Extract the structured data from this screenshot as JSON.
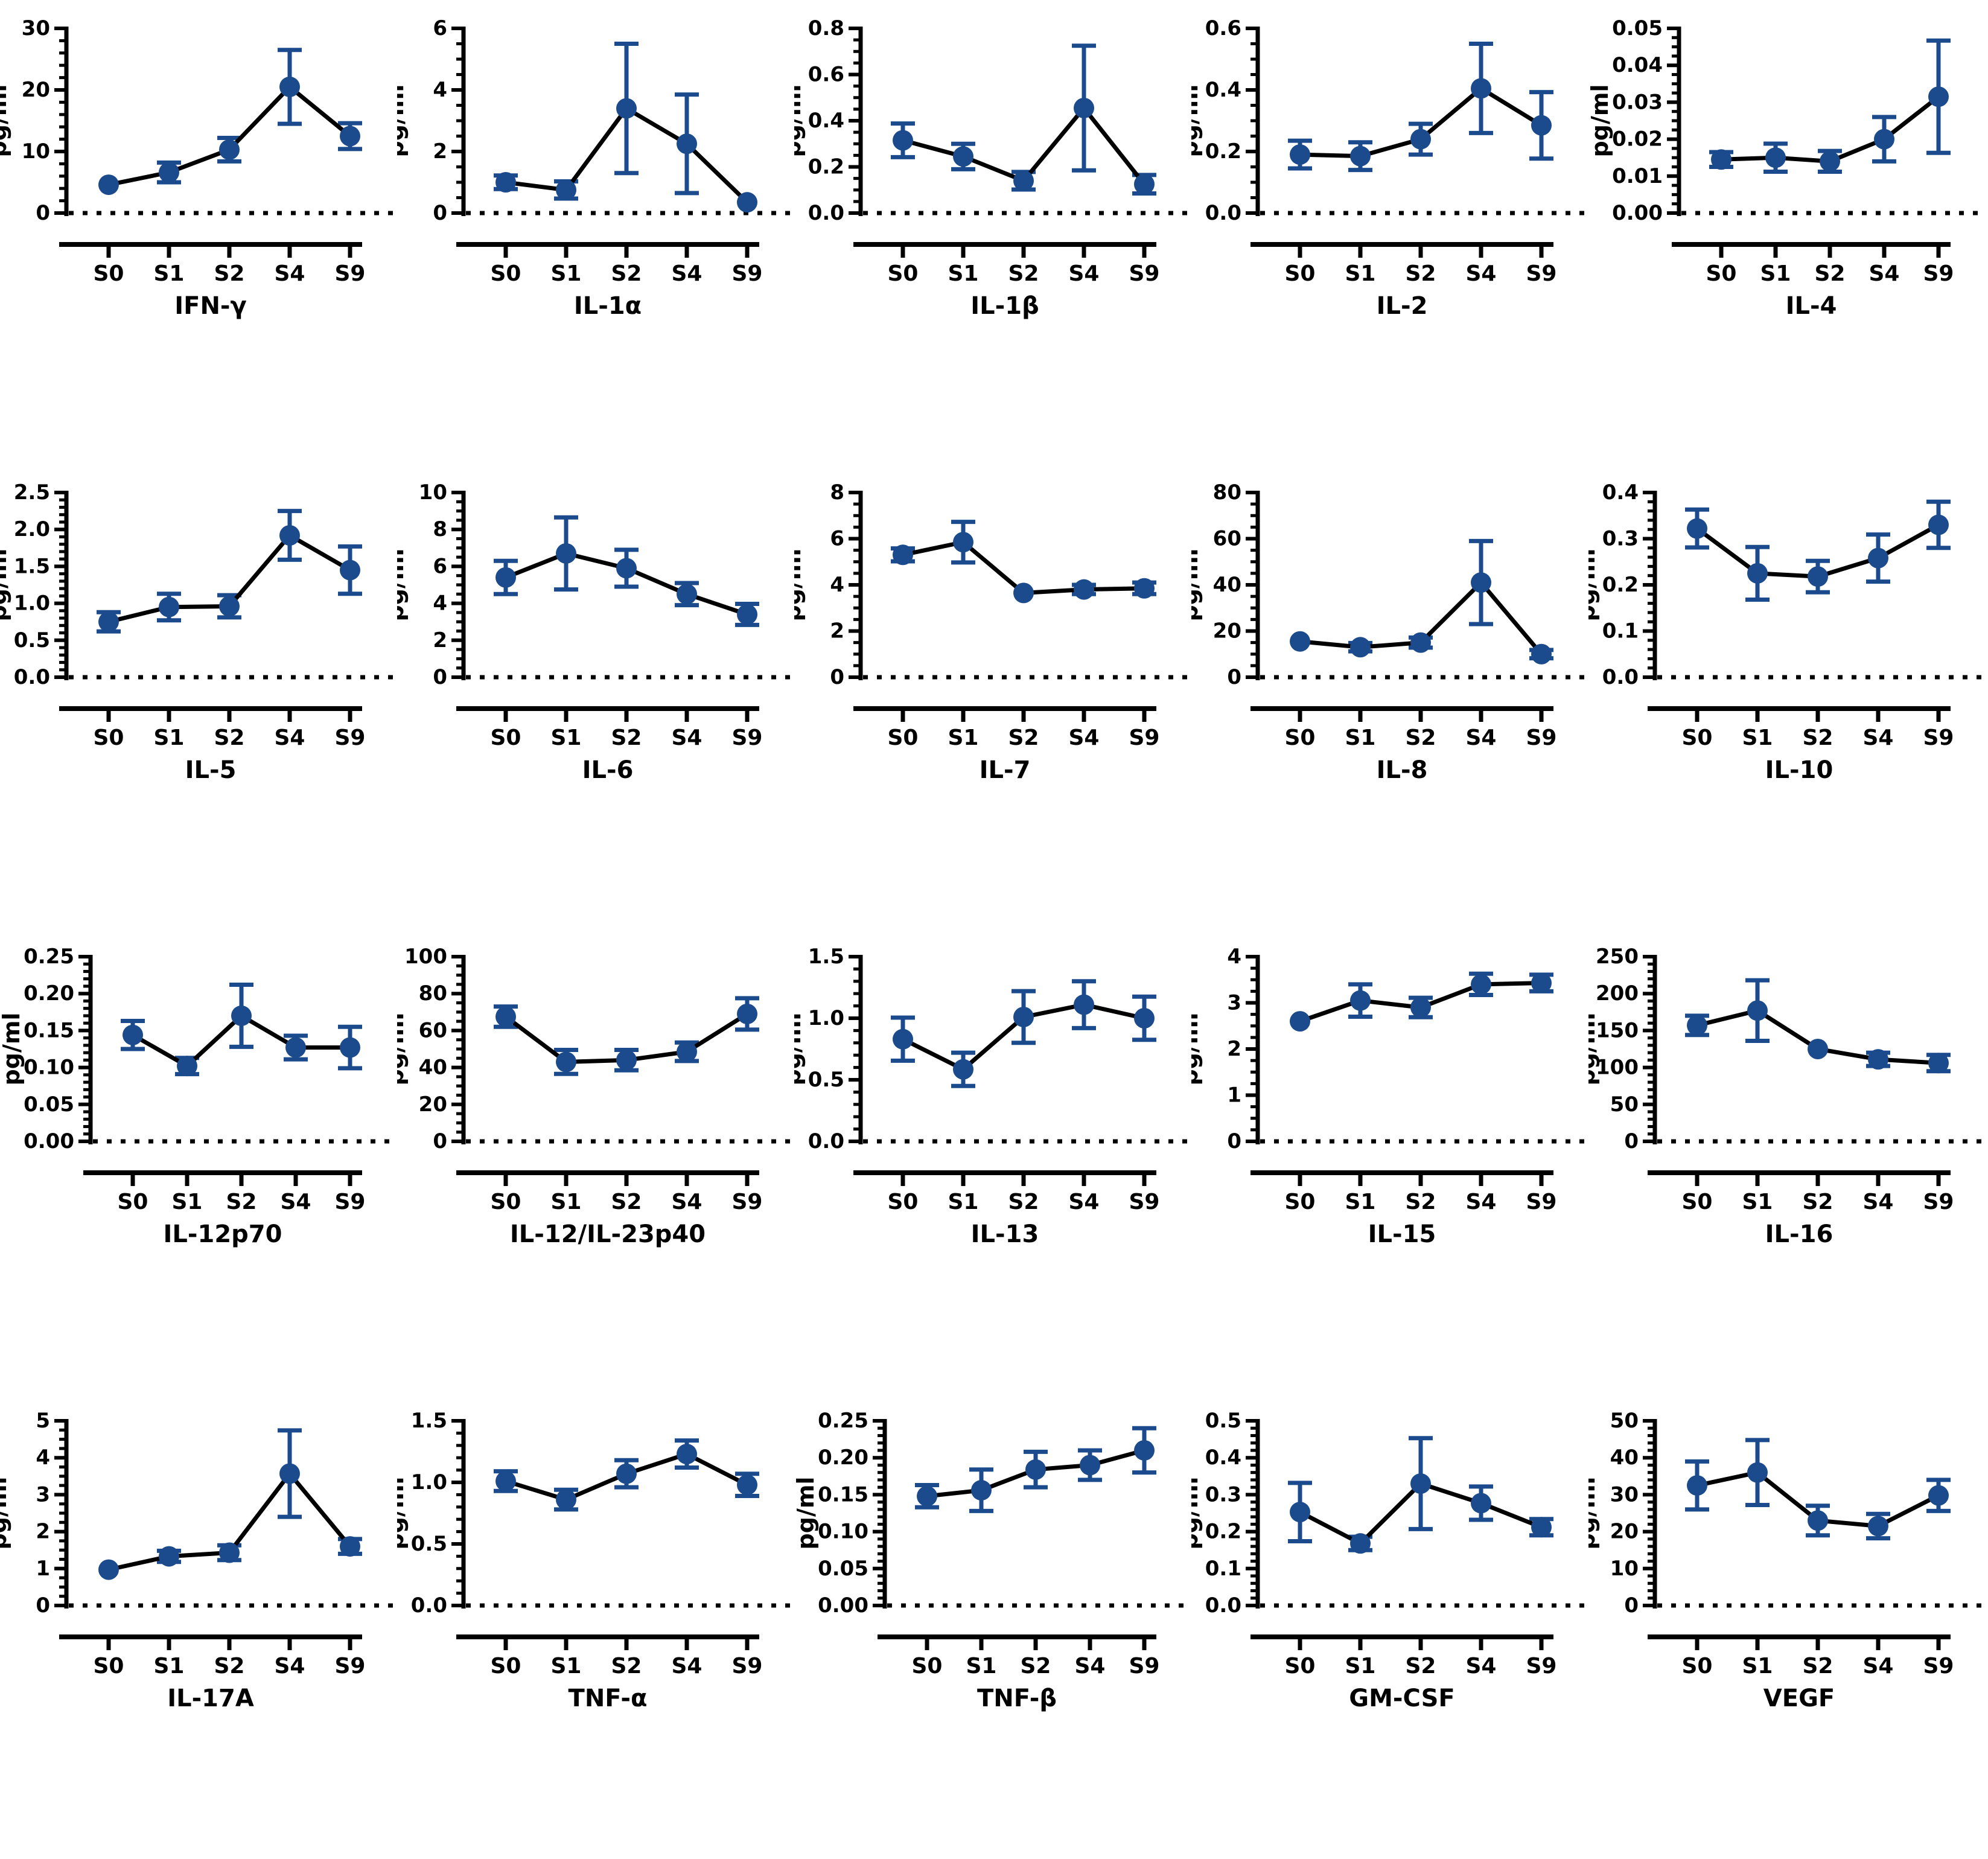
{
  "figure": {
    "ylabel": "pg/ml",
    "categories": [
      "S0",
      "S1",
      "S2",
      "S4",
      "S9"
    ],
    "marker_color": "#1b4b8c",
    "line_color": "#000000",
    "axis_color": "#000000",
    "background": "#ffffff"
  },
  "chart_data": [
    {
      "type": "line",
      "title": "IFN-γ",
      "ylabel": "pg/ml",
      "categories": [
        "S0",
        "S1",
        "S2",
        "S4",
        "S9"
      ],
      "values": [
        4.6,
        6.6,
        10.3,
        20.5,
        12.5
      ],
      "errors": [
        0,
        1.6,
        1.9,
        6.0,
        2.1
      ],
      "ylim": [
        0,
        30
      ],
      "yticks": [
        0,
        10,
        20,
        30
      ],
      "ytick_labels": [
        "0",
        "10",
        "20",
        "30"
      ],
      "minor_divisions": 5
    },
    {
      "type": "line",
      "title": "IL-1α",
      "ylabel": "pg/ml",
      "categories": [
        "S0",
        "S1",
        "S2",
        "S4",
        "S9"
      ],
      "values": [
        1.0,
        0.75,
        3.4,
        2.25,
        0.35
      ],
      "errors": [
        0.22,
        0.28,
        2.1,
        1.6,
        0
      ],
      "ylim": [
        0,
        6
      ],
      "yticks": [
        0,
        2,
        4,
        6
      ],
      "ytick_labels": [
        "0",
        "2",
        "4",
        "6"
      ],
      "minor_divisions": 4
    },
    {
      "type": "line",
      "title": "IL-1β",
      "ylabel": "pg/ml",
      "categories": [
        "S0",
        "S1",
        "S2",
        "S4",
        "S9"
      ],
      "values": [
        0.315,
        0.245,
        0.14,
        0.455,
        0.125
      ],
      "errors": [
        0.073,
        0.055,
        0.038,
        0.27,
        0.04
      ],
      "ylim": [
        0,
        0.8
      ],
      "yticks": [
        0,
        0.2,
        0.4,
        0.6,
        0.8
      ],
      "ytick_labels": [
        "0.0",
        "0.2",
        "0.4",
        "0.6",
        "0.8"
      ],
      "minor_divisions": 4
    },
    {
      "type": "line",
      "title": "IL-2",
      "ylabel": "pg/ml",
      "categories": [
        "S0",
        "S1",
        "S2",
        "S4",
        "S9"
      ],
      "values": [
        0.19,
        0.185,
        0.24,
        0.405,
        0.285
      ],
      "errors": [
        0.045,
        0.045,
        0.05,
        0.145,
        0.108
      ],
      "ylim": [
        0,
        0.6
      ],
      "yticks": [
        0,
        0.2,
        0.4,
        0.6
      ],
      "ytick_labels": [
        "0.0",
        "0.2",
        "0.4",
        "0.6"
      ],
      "minor_divisions": 4
    },
    {
      "type": "line",
      "title": "IL-4",
      "ylabel": "pg/ml",
      "categories": [
        "S0",
        "S1",
        "S2",
        "S4",
        "S9"
      ],
      "values": [
        0.0145,
        0.015,
        0.014,
        0.02,
        0.0315
      ],
      "errors": [
        0.002,
        0.0038,
        0.0028,
        0.006,
        0.0152
      ],
      "ylim": [
        0,
        0.05
      ],
      "yticks": [
        0,
        0.01,
        0.02,
        0.03,
        0.04,
        0.05
      ],
      "ytick_labels": [
        "0.00",
        "0.01",
        "0.02",
        "0.03",
        "0.04",
        "0.05"
      ],
      "minor_divisions": 4
    },
    {
      "type": "line",
      "title": "IL-5",
      "ylabel": "pg/ml",
      "categories": [
        "S0",
        "S1",
        "S2",
        "S4",
        "S9"
      ],
      "values": [
        0.75,
        0.95,
        0.96,
        1.92,
        1.45
      ],
      "errors": [
        0.13,
        0.18,
        0.15,
        0.33,
        0.32
      ],
      "ylim": [
        0,
        2.5
      ],
      "yticks": [
        0,
        0.5,
        1.0,
        1.5,
        2.0,
        2.5
      ],
      "ytick_labels": [
        "0.0",
        "0.5",
        "1.0",
        "1.5",
        "2.0",
        "2.5"
      ],
      "minor_divisions": 5
    },
    {
      "type": "line",
      "title": "IL-6",
      "ylabel": "pg/ml",
      "categories": [
        "S0",
        "S1",
        "S2",
        "S4",
        "S9"
      ],
      "values": [
        5.4,
        6.7,
        5.9,
        4.5,
        3.4
      ],
      "errors": [
        0.9,
        1.95,
        1.0,
        0.6,
        0.57
      ],
      "ylim": [
        0,
        10
      ],
      "yticks": [
        0,
        2,
        4,
        6,
        8,
        10
      ],
      "ytick_labels": [
        "0",
        "2",
        "4",
        "6",
        "8",
        "10"
      ],
      "minor_divisions": 4
    },
    {
      "type": "line",
      "title": "IL-7",
      "ylabel": "pg/ml",
      "categories": [
        "S0",
        "S1",
        "S2",
        "S4",
        "S9"
      ],
      "values": [
        5.3,
        5.85,
        3.65,
        3.8,
        3.85
      ],
      "errors": [
        0.28,
        0.88,
        0,
        0.2,
        0.25
      ],
      "ylim": [
        0,
        8
      ],
      "yticks": [
        0,
        2,
        4,
        6,
        8
      ],
      "ytick_labels": [
        "0",
        "2",
        "4",
        "6",
        "8"
      ],
      "minor_divisions": 4
    },
    {
      "type": "line",
      "title": "IL-8",
      "ylabel": "pg/ml",
      "categories": [
        "S0",
        "S1",
        "S2",
        "S4",
        "S9"
      ],
      "values": [
        15.5,
        13,
        15,
        41,
        10
      ],
      "errors": [
        0,
        1.8,
        2.2,
        18,
        1.8
      ],
      "ylim": [
        0,
        80
      ],
      "yticks": [
        0,
        20,
        40,
        60,
        80
      ],
      "ytick_labels": [
        "0",
        "20",
        "40",
        "60",
        "80"
      ],
      "minor_divisions": 4
    },
    {
      "type": "line",
      "title": "IL-10",
      "ylabel": "pg/ml",
      "categories": [
        "S0",
        "S1",
        "S2",
        "S4",
        "S9"
      ],
      "values": [
        0.322,
        0.225,
        0.218,
        0.258,
        0.33
      ],
      "errors": [
        0.041,
        0.057,
        0.034,
        0.051,
        0.05
      ],
      "ylim": [
        0,
        0.4
      ],
      "yticks": [
        0,
        0.1,
        0.2,
        0.3,
        0.4
      ],
      "ytick_labels": [
        "0.0",
        "0.1",
        "0.2",
        "0.3",
        "0.4"
      ],
      "minor_divisions": 5
    },
    {
      "type": "line",
      "title": "IL-12p70",
      "ylabel": "pg/ml",
      "categories": [
        "S0",
        "S1",
        "S2",
        "S4",
        "S9"
      ],
      "values": [
        0.144,
        0.102,
        0.17,
        0.127,
        0.127
      ],
      "errors": [
        0.019,
        0.011,
        0.042,
        0.016,
        0.028
      ],
      "ylim": [
        0,
        0.25
      ],
      "yticks": [
        0,
        0.05,
        0.1,
        0.15,
        0.2,
        0.25
      ],
      "ytick_labels": [
        "0.00",
        "0.05",
        "0.10",
        "0.15",
        "0.20",
        "0.25"
      ],
      "minor_divisions": 5
    },
    {
      "type": "line",
      "title": "IL-12/IL-23p40",
      "ylabel": "pg/ml",
      "categories": [
        "S0",
        "S1",
        "S2",
        "S4",
        "S9"
      ],
      "values": [
        67.5,
        43,
        44,
        48.5,
        69
      ],
      "errors": [
        5.5,
        6.5,
        5.5,
        5,
        8.5
      ],
      "ylim": [
        0,
        100
      ],
      "yticks": [
        0,
        20,
        40,
        60,
        80,
        100
      ],
      "ytick_labels": [
        "0",
        "20",
        "40",
        "60",
        "80",
        "100"
      ],
      "minor_divisions": 4
    },
    {
      "type": "line",
      "title": "IL-13",
      "ylabel": "pg/ml",
      "categories": [
        "S0",
        "S1",
        "S2",
        "S4",
        "S9"
      ],
      "values": [
        0.83,
        0.585,
        1.01,
        1.11,
        1.0
      ],
      "errors": [
        0.175,
        0.135,
        0.21,
        0.19,
        0.175
      ],
      "ylim": [
        0,
        1.5
      ],
      "yticks": [
        0,
        0.5,
        1.0,
        1.5
      ],
      "ytick_labels": [
        "0.0",
        "0.5",
        "1.0",
        "1.5"
      ],
      "minor_divisions": 5
    },
    {
      "type": "line",
      "title": "IL-15",
      "ylabel": "pg/ml",
      "categories": [
        "S0",
        "S1",
        "S2",
        "S4",
        "S9"
      ],
      "values": [
        2.6,
        3.05,
        2.9,
        3.4,
        3.43
      ],
      "errors": [
        0,
        0.35,
        0.21,
        0.23,
        0.18
      ],
      "ylim": [
        0,
        4
      ],
      "yticks": [
        0,
        1,
        2,
        3,
        4
      ],
      "ytick_labels": [
        "0",
        "1",
        "2",
        "3",
        "4"
      ],
      "minor_divisions": 4
    },
    {
      "type": "line",
      "title": "IL-16",
      "ylabel": "pg/ml",
      "categories": [
        "S0",
        "S1",
        "S2",
        "S4",
        "S9"
      ],
      "values": [
        157,
        177,
        125,
        111,
        106
      ],
      "errors": [
        13,
        41,
        0,
        9,
        11
      ],
      "ylim": [
        0,
        250
      ],
      "yticks": [
        0,
        50,
        100,
        150,
        200,
        250
      ],
      "ytick_labels": [
        "0",
        "50",
        "100",
        "150",
        "200",
        "250"
      ],
      "minor_divisions": 5
    },
    {
      "type": "line",
      "title": "IL-17A",
      "ylabel": "pg/ml",
      "categories": [
        "S0",
        "S1",
        "S2",
        "S4",
        "S9"
      ],
      "values": [
        0.97,
        1.33,
        1.43,
        3.57,
        1.6
      ],
      "errors": [
        0,
        0.15,
        0.2,
        1.17,
        0.2
      ],
      "ylim": [
        0,
        5
      ],
      "yticks": [
        0,
        1,
        2,
        3,
        4,
        5
      ],
      "ytick_labels": [
        "0",
        "1",
        "2",
        "3",
        "4",
        "5"
      ],
      "minor_divisions": 4
    },
    {
      "type": "line",
      "title": "TNF-α",
      "ylabel": "pg/ml",
      "categories": [
        "S0",
        "S1",
        "S2",
        "S4",
        "S9"
      ],
      "values": [
        1.01,
        0.86,
        1.07,
        1.23,
        0.98
      ],
      "errors": [
        0.08,
        0.08,
        0.11,
        0.11,
        0.09
      ],
      "ylim": [
        0,
        1.5
      ],
      "yticks": [
        0,
        0.5,
        1.0,
        1.5
      ],
      "ytick_labels": [
        "0.0",
        "0.5",
        "1.0",
        "1.5"
      ],
      "minor_divisions": 5
    },
    {
      "type": "line",
      "title": "TNF-β",
      "ylabel": "pg/ml",
      "categories": [
        "S0",
        "S1",
        "S2",
        "S4",
        "S9"
      ],
      "values": [
        0.148,
        0.156,
        0.184,
        0.19,
        0.21
      ],
      "errors": [
        0.015,
        0.028,
        0.024,
        0.02,
        0.03
      ],
      "ylim": [
        0,
        0.25
      ],
      "yticks": [
        0,
        0.05,
        0.1,
        0.15,
        0.2,
        0.25
      ],
      "ytick_labels": [
        "0.00",
        "0.05",
        "0.10",
        "0.15",
        "0.20",
        "0.25"
      ],
      "minor_divisions": 5
    },
    {
      "type": "line",
      "title": "GM-CSF",
      "ylabel": "pg/ml",
      "categories": [
        "S0",
        "S1",
        "S2",
        "S4",
        "S9"
      ],
      "values": [
        0.253,
        0.168,
        0.33,
        0.277,
        0.212
      ],
      "errors": [
        0.079,
        0.018,
        0.123,
        0.045,
        0.022
      ],
      "ylim": [
        0,
        0.5
      ],
      "yticks": [
        0,
        0.1,
        0.2,
        0.3,
        0.4,
        0.5
      ],
      "ytick_labels": [
        "0.0",
        "0.1",
        "0.2",
        "0.3",
        "0.4",
        "0.5"
      ],
      "minor_divisions": 5
    },
    {
      "type": "line",
      "title": "VEGF",
      "ylabel": "pg/ml",
      "categories": [
        "S0",
        "S1",
        "S2",
        "S4",
        "S9"
      ],
      "values": [
        32.5,
        36,
        23,
        21.5,
        29.8
      ],
      "errors": [
        6.5,
        8.8,
        4,
        3.3,
        4.2
      ],
      "ylim": [
        0,
        50
      ],
      "yticks": [
        0,
        10,
        20,
        30,
        40,
        50
      ],
      "ytick_labels": [
        "0",
        "10",
        "20",
        "30",
        "40",
        "50"
      ],
      "minor_divisions": 5
    }
  ]
}
